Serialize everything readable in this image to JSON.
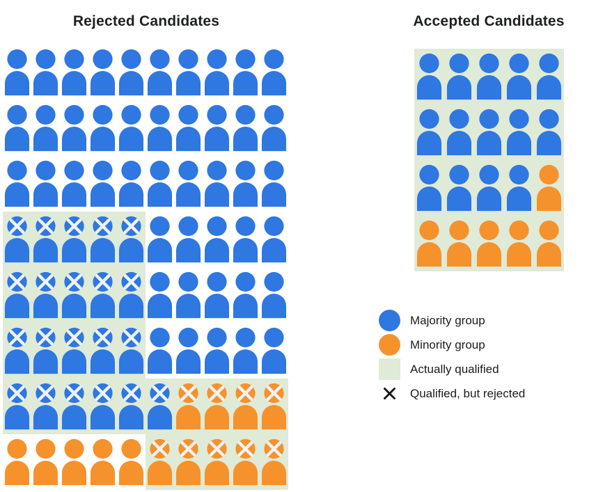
{
  "colors": {
    "majority": "#2F77E1",
    "minority": "#F5922C",
    "qualified_bg": "#DFEAD7",
    "x_mark": "#EFF3F7",
    "ink": "#171717"
  },
  "rejected": {
    "title": "Rejected Candidates",
    "rows": [
      [
        "M",
        "M",
        "M",
        "M",
        "M",
        "M",
        "M",
        "M",
        "M",
        "M"
      ],
      [
        "M",
        "M",
        "M",
        "M",
        "M",
        "M",
        "M",
        "M",
        "M",
        "M"
      ],
      [
        "M",
        "M",
        "M",
        "M",
        "M",
        "M",
        "M",
        "M",
        "M",
        "M"
      ],
      [
        "Mxq",
        "Mxq",
        "Mxq",
        "Mxq",
        "Mxq",
        "M",
        "M",
        "M",
        "M",
        "M"
      ],
      [
        "Mxq",
        "Mxq",
        "Mxq",
        "Mxq",
        "Mxq",
        "M",
        "M",
        "M",
        "M",
        "M"
      ],
      [
        "Mxq",
        "Mxq",
        "Mxq",
        "Mxq",
        "Mxq",
        "M",
        "M",
        "M",
        "M",
        "M"
      ],
      [
        "Mxq",
        "Mxq",
        "Mxq",
        "Mxq",
        "Mxq",
        "Mxq",
        "Oxq",
        "Oxq",
        "Oxq",
        "Oxq"
      ],
      [
        "O",
        "O",
        "O",
        "O",
        "O",
        "Oxq",
        "Oxq",
        "Oxq",
        "Oxq",
        "Oxq"
      ]
    ]
  },
  "accepted": {
    "title": "Accepted Candidates",
    "rows": [
      [
        "Mq",
        "Mq",
        "Mq",
        "Mq",
        "Mq"
      ],
      [
        "Mq",
        "Mq",
        "Mq",
        "Mq",
        "Mq"
      ],
      [
        "Mq",
        "Mq",
        "Mq",
        "Mq",
        "Oq"
      ],
      [
        "Oq",
        "Oq",
        "Oq",
        "Oq",
        "Oq"
      ]
    ]
  },
  "legend": {
    "items": [
      {
        "swatch": "majority-circle",
        "label": "Majority group"
      },
      {
        "swatch": "minority-circle",
        "label": "Minority group"
      },
      {
        "swatch": "qualified-square",
        "label": "Actually qualified"
      },
      {
        "swatch": "x-mark",
        "label": "Qualified, but rejected"
      }
    ]
  }
}
